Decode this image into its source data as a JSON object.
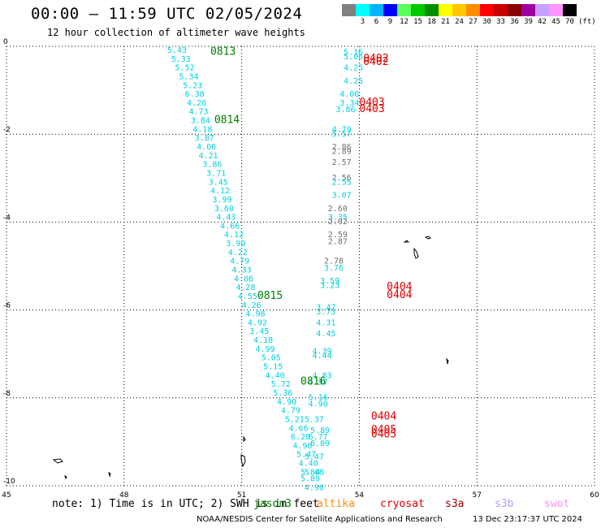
{
  "title": "00:00 – 11:59 UTC 02/05/2024",
  "subtitle": "12 hour collection of altimeter wave heights",
  "legend": {
    "unit": "(ft)",
    "colors": [
      "#808080",
      "#00ffff",
      "#00b4ff",
      "#0000ff",
      "#5aff5a",
      "#00c800",
      "#008c00",
      "#ffff00",
      "#ffc800",
      "#ff8c00",
      "#ff0000",
      "#c80000",
      "#8c0000",
      "#a000a0",
      "#c8a0ff",
      "#ff96ff",
      "#000000"
    ],
    "labels": [
      "3",
      "6",
      "9",
      "12",
      "15",
      "18",
      "21",
      "24",
      "27",
      "30",
      "33",
      "36",
      "39",
      "42",
      "45",
      "70"
    ]
  },
  "axes": {
    "x_ticks": [
      "45",
      "48",
      "51",
      "54",
      "57",
      "60"
    ],
    "y_ticks": [
      "0",
      "-2",
      "-4",
      "-6",
      "-8",
      "-10"
    ],
    "x_range": [
      45,
      60
    ],
    "y_range": [
      -10,
      0
    ],
    "grid": "dotted"
  },
  "track_labels": [
    {
      "text": "0813",
      "color": "#008000",
      "lon": 50.2,
      "lat": -0.05
    },
    {
      "text": "0814",
      "color": "#008000",
      "lon": 50.3,
      "lat": -1.6
    },
    {
      "text": "0815",
      "color": "#008000",
      "lon": 51.4,
      "lat": -5.6
    },
    {
      "text": "0816",
      "color": "#008000",
      "lon": 52.5,
      "lat": -7.55
    },
    {
      "text": "0402",
      "color": "#e00000",
      "lon": 54.1,
      "lat": -0.2
    },
    {
      "text": "0402",
      "color": "#e00000",
      "lon": 54.1,
      "lat": -0.28
    },
    {
      "text": "0403",
      "color": "#e00000",
      "lon": 54.0,
      "lat": -1.2
    },
    {
      "text": "0403",
      "color": "#e00000",
      "lon": 54.0,
      "lat": -1.35
    },
    {
      "text": "0404",
      "color": "#e00000",
      "lon": 54.7,
      "lat": -5.4
    },
    {
      "text": "0404",
      "color": "#e00000",
      "lon": 54.7,
      "lat": -5.58
    },
    {
      "text": "0404",
      "color": "#e00000",
      "lon": 54.3,
      "lat": -8.35
    },
    {
      "text": "0405",
      "color": "#e00000",
      "lon": 54.3,
      "lat": -8.65
    },
    {
      "text": "0405",
      "color": "#e00000",
      "lon": 54.3,
      "lat": -8.75
    }
  ],
  "values": [
    {
      "t": "5.43",
      "c": "#00d0e0",
      "lon": 49.1,
      "lat": 0.0
    },
    {
      "t": "5.33",
      "c": "#00d0e0",
      "lon": 49.2,
      "lat": -0.2
    },
    {
      "t": "5.52",
      "c": "#00d0e0",
      "lon": 49.3,
      "lat": -0.4
    },
    {
      "t": "5.34",
      "c": "#00d0e0",
      "lon": 49.4,
      "lat": -0.6
    },
    {
      "t": "5.23",
      "c": "#00d0e0",
      "lon": 49.5,
      "lat": -0.8
    },
    {
      "t": "6.38",
      "c": "#00d0e0",
      "lon": 49.55,
      "lat": -1.0
    },
    {
      "t": "4.26",
      "c": "#00d0e0",
      "lon": 49.6,
      "lat": -1.2
    },
    {
      "t": "4.73",
      "c": "#00d0e0",
      "lon": 49.65,
      "lat": -1.4
    },
    {
      "t": "3.84",
      "c": "#00d0e0",
      "lon": 49.7,
      "lat": -1.6
    },
    {
      "t": "4.18",
      "c": "#00d0e0",
      "lon": 49.75,
      "lat": -1.8
    },
    {
      "t": "3.87",
      "c": "#00d0e0",
      "lon": 49.8,
      "lat": -2.0
    },
    {
      "t": "4.06",
      "c": "#00d0e0",
      "lon": 49.85,
      "lat": -2.2
    },
    {
      "t": "4.21",
      "c": "#00d0e0",
      "lon": 49.9,
      "lat": -2.4
    },
    {
      "t": "3.86",
      "c": "#00d0e0",
      "lon": 50.0,
      "lat": -2.6
    },
    {
      "t": "3.71",
      "c": "#00d0e0",
      "lon": 50.1,
      "lat": -2.8
    },
    {
      "t": "3.45",
      "c": "#00d0e0",
      "lon": 50.15,
      "lat": -3.0
    },
    {
      "t": "4.12",
      "c": "#00d0e0",
      "lon": 50.2,
      "lat": -3.2
    },
    {
      "t": "3.99",
      "c": "#00d0e0",
      "lon": 50.25,
      "lat": -3.4
    },
    {
      "t": "3.60",
      "c": "#00d0e0",
      "lon": 50.3,
      "lat": -3.6
    },
    {
      "t": "4.43",
      "c": "#00d0e0",
      "lon": 50.35,
      "lat": -3.8
    },
    {
      "t": "4.66",
      "c": "#00d0e0",
      "lon": 50.45,
      "lat": -4.0
    },
    {
      "t": "4.12",
      "c": "#00d0e0",
      "lon": 50.55,
      "lat": -4.2
    },
    {
      "t": "3.99",
      "c": "#00d0e0",
      "lon": 50.6,
      "lat": -4.4
    },
    {
      "t": "4.22",
      "c": "#00d0e0",
      "lon": 50.65,
      "lat": -4.6
    },
    {
      "t": "4.79",
      "c": "#00d0e0",
      "lon": 50.7,
      "lat": -4.8
    },
    {
      "t": "4.33",
      "c": "#00d0e0",
      "lon": 50.75,
      "lat": -5.0
    },
    {
      "t": "4.06",
      "c": "#00d0e0",
      "lon": 50.8,
      "lat": -5.2
    },
    {
      "t": "4.28",
      "c": "#00d0e0",
      "lon": 50.85,
      "lat": -5.4
    },
    {
      "t": "4.55",
      "c": "#00d0e0",
      "lon": 50.9,
      "lat": -5.6
    },
    {
      "t": "4.26",
      "c": "#00d0e0",
      "lon": 51.0,
      "lat": -5.8
    },
    {
      "t": "4.98",
      "c": "#00d0e0",
      "lon": 51.1,
      "lat": -6.0
    },
    {
      "t": "4.92",
      "c": "#00d0e0",
      "lon": 51.15,
      "lat": -6.2
    },
    {
      "t": "3.45",
      "c": "#00d0e0",
      "lon": 51.2,
      "lat": -6.4
    },
    {
      "t": "4.18",
      "c": "#00d0e0",
      "lon": 51.3,
      "lat": -6.6
    },
    {
      "t": "4.99",
      "c": "#00d0e0",
      "lon": 51.35,
      "lat": -6.8
    },
    {
      "t": "5.05",
      "c": "#00d0e0",
      "lon": 51.5,
      "lat": -7.0
    },
    {
      "t": "5.15",
      "c": "#00d0e0",
      "lon": 51.55,
      "lat": -7.2
    },
    {
      "t": "4.40",
      "c": "#00d0e0",
      "lon": 51.6,
      "lat": -7.4
    },
    {
      "t": "5.72",
      "c": "#00d0e0",
      "lon": 51.75,
      "lat": -7.6
    },
    {
      "t": "5.36",
      "c": "#00d0e0",
      "lon": 51.8,
      "lat": -7.8
    },
    {
      "t": "4.90",
      "c": "#00d0e0",
      "lon": 51.9,
      "lat": -8.0
    },
    {
      "t": "4.79",
      "c": "#00d0e0",
      "lon": 52.0,
      "lat": -8.2
    },
    {
      "t": "5.21",
      "c": "#00d0e0",
      "lon": 52.1,
      "lat": -8.4
    },
    {
      "t": "4.66",
      "c": "#00d0e0",
      "lon": 52.2,
      "lat": -8.6
    },
    {
      "t": "6.28",
      "c": "#00d0e0",
      "lon": 52.25,
      "lat": -8.8
    },
    {
      "t": "4.96",
      "c": "#00d0e0",
      "lon": 52.3,
      "lat": -9.0
    },
    {
      "t": "5.47",
      "c": "#00d0e0",
      "lon": 52.4,
      "lat": -9.2
    },
    {
      "t": "4.40",
      "c": "#00d0e0",
      "lon": 52.45,
      "lat": -9.4
    },
    {
      "t": "5.80",
      "c": "#00d0e0",
      "lon": 52.5,
      "lat": -9.6
    },
    {
      "t": "5.89",
      "c": "#00d0e0",
      "lon": 52.5,
      "lat": -9.75
    },
    {
      "t": "4.90",
      "c": "#00d0e0",
      "lon": 52.6,
      "lat": -9.95
    },
    {
      "t": "5.37",
      "c": "#00d0e0",
      "lon": 52.6,
      "lat": -8.4
    },
    {
      "t": "5.16",
      "c": "#00d0e0",
      "lon": 52.7,
      "lat": -7.9
    },
    {
      "t": "4.90",
      "c": "#00d0e0",
      "lon": 52.7,
      "lat": -8.05
    },
    {
      "t": "4.83",
      "c": "#00d0e0",
      "lon": 52.8,
      "lat": -7.4
    },
    {
      "t": "4.97",
      "c": "#00d0e0",
      "lon": 52.7,
      "lat": -7.55
    },
    {
      "t": "5.89",
      "c": "#00d0e0",
      "lon": 52.75,
      "lat": -8.65
    },
    {
      "t": "6.77",
      "c": "#00d0e0",
      "lon": 52.7,
      "lat": -8.8
    },
    {
      "t": "6.09",
      "c": "#00d0e0",
      "lon": 52.75,
      "lat": -8.95
    },
    {
      "t": "5.47",
      "c": "#00d0e0",
      "lon": 52.6,
      "lat": -9.25
    },
    {
      "t": "5.48",
      "c": "#00d0e0",
      "lon": 52.6,
      "lat": -9.6
    },
    {
      "t": "5.16",
      "c": "#00d0e0",
      "lon": 53.6,
      "lat": -0.05
    },
    {
      "t": "5.06",
      "c": "#00d0e0",
      "lon": 53.6,
      "lat": -0.15
    },
    {
      "t": "4.25",
      "c": "#00d0e0",
      "lon": 53.6,
      "lat": -0.4
    },
    {
      "t": "4.25",
      "c": "#00d0e0",
      "lon": 53.6,
      "lat": -0.7
    },
    {
      "t": "4.06",
      "c": "#00d0e0",
      "lon": 53.5,
      "lat": -1.0
    },
    {
      "t": "3.34",
      "c": "#00d0e0",
      "lon": 53.5,
      "lat": -1.2
    },
    {
      "t": "3.86",
      "c": "#00d0e0",
      "lon": 53.4,
      "lat": -1.35
    },
    {
      "t": "4.79",
      "c": "#00d0e0",
      "lon": 53.3,
      "lat": -1.8
    },
    {
      "t": "5.57",
      "c": "#00d0e0",
      "lon": 53.3,
      "lat": -1.9
    },
    {
      "t": "2.86",
      "c": "#707070",
      "lon": 53.3,
      "lat": -2.2
    },
    {
      "t": "2.89",
      "c": "#707070",
      "lon": 53.3,
      "lat": -2.3
    },
    {
      "t": "2.57",
      "c": "#707070",
      "lon": 53.3,
      "lat": -2.55
    },
    {
      "t": "2.56",
      "c": "#707070",
      "lon": 53.3,
      "lat": -2.9
    },
    {
      "t": "2.55",
      "c": "#00d0e0",
      "lon": 53.3,
      "lat": -3.0
    },
    {
      "t": "3.07",
      "c": "#00d0e0",
      "lon": 53.3,
      "lat": -3.3
    },
    {
      "t": "2.60",
      "c": "#707070",
      "lon": 53.2,
      "lat": -3.6
    },
    {
      "t": "3.35",
      "c": "#00d0e0",
      "lon": 53.2,
      "lat": -3.8
    },
    {
      "t": "2.92",
      "c": "#707070",
      "lon": 53.2,
      "lat": -3.9
    },
    {
      "t": "2.59",
      "c": "#707070",
      "lon": 53.2,
      "lat": -4.2
    },
    {
      "t": "2.87",
      "c": "#707070",
      "lon": 53.2,
      "lat": -4.35
    },
    {
      "t": "2.78",
      "c": "#707070",
      "lon": 53.1,
      "lat": -4.8
    },
    {
      "t": "3.76",
      "c": "#00d0e0",
      "lon": 53.1,
      "lat": -4.95
    },
    {
      "t": "3.59",
      "c": "#00d0e0",
      "lon": 53.0,
      "lat": -5.25
    },
    {
      "t": "3.23",
      "c": "#00d0e0",
      "lon": 53.0,
      "lat": -5.35
    },
    {
      "t": "3.47",
      "c": "#00d0e0",
      "lon": 52.9,
      "lat": -5.85
    },
    {
      "t": "3.73",
      "c": "#00d0e0",
      "lon": 52.9,
      "lat": -5.95
    },
    {
      "t": "4.31",
      "c": "#00d0e0",
      "lon": 52.9,
      "lat": -6.2
    },
    {
      "t": "4.45",
      "c": "#00d0e0",
      "lon": 52.9,
      "lat": -6.45
    },
    {
      "t": "4.39",
      "c": "#00d0e0",
      "lon": 52.8,
      "lat": -6.85
    },
    {
      "t": "4.44",
      "c": "#00d0e0",
      "lon": 52.8,
      "lat": -6.95
    }
  ],
  "note": "note: 1) Time is in UTC; 2) SWH is in feet",
  "satellites": [
    {
      "name": "jason3",
      "color": "#008000"
    },
    {
      "name": "altika",
      "color": "#ff8c00"
    },
    {
      "name": "cryosat",
      "color": "#e00000"
    },
    {
      "name": "s3a",
      "color": "#a00000"
    },
    {
      "name": "s3b",
      "color": "#b0a0ff"
    },
    {
      "name": "swot",
      "color": "#ff90ff"
    }
  ],
  "footer": "NOAA/NESDIS Center for Satellite Applications and Research",
  "timestamp": "13 Dec 23:17:37 UTC 2024"
}
